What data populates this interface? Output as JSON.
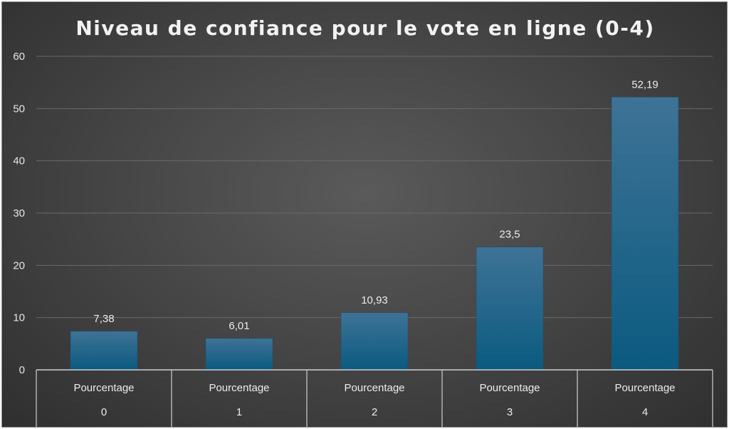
{
  "chart_data": {
    "type": "bar",
    "title": "Niveau de confiance pour le vote en ligne (0-4)",
    "xlabel": "",
    "ylabel": "",
    "ylim": [
      0,
      60
    ],
    "yticks": [
      "0",
      "10",
      "20",
      "30",
      "40",
      "50",
      "60"
    ],
    "grid": true,
    "legend": "none",
    "categories": [
      {
        "group": "Pourcentage",
        "label": "0"
      },
      {
        "group": "Pourcentage",
        "label": "1"
      },
      {
        "group": "Pourcentage",
        "label": "2"
      },
      {
        "group": "Pourcentage",
        "label": "3"
      },
      {
        "group": "Pourcentage",
        "label": "4"
      }
    ],
    "values": [
      7.38,
      6.01,
      10.93,
      23.5,
      52.19
    ],
    "data_labels": [
      "7,38",
      "6,01",
      "10,93",
      "23,5",
      "52,19"
    ],
    "colors": {
      "bar_top": "#3e7396",
      "bar_bottom": "#0b5a80",
      "gridline": "#6a6a6a",
      "axis": "#cfcfcf"
    }
  }
}
